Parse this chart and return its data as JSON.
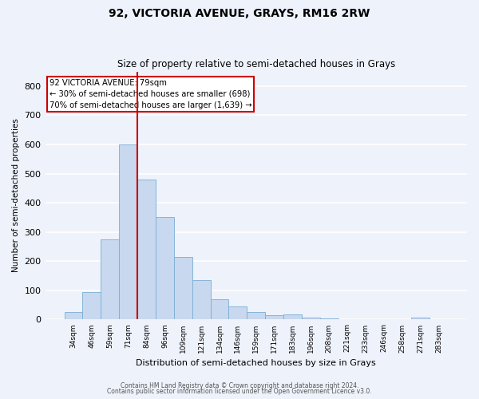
{
  "title_line1": "92, VICTORIA AVENUE, GRAYS, RM16 2RW",
  "title_line2": "Size of property relative to semi-detached houses in Grays",
  "xlabel": "Distribution of semi-detached houses by size in Grays",
  "ylabel": "Number of semi-detached properties",
  "categories": [
    "34sqm",
    "46sqm",
    "59sqm",
    "71sqm",
    "84sqm",
    "96sqm",
    "109sqm",
    "121sqm",
    "134sqm",
    "146sqm",
    "159sqm",
    "171sqm",
    "183sqm",
    "196sqm",
    "208sqm",
    "221sqm",
    "233sqm",
    "246sqm",
    "258sqm",
    "271sqm",
    "283sqm"
  ],
  "values": [
    25,
    95,
    275,
    600,
    480,
    350,
    215,
    135,
    70,
    45,
    25,
    15,
    17,
    8,
    5,
    0,
    0,
    0,
    0,
    7,
    0
  ],
  "bar_color": "#c8d8ef",
  "bar_edge_color": "#7aadd4",
  "background_color": "#eef2fb",
  "grid_color": "#ffffff",
  "vline_x_index": 3.5,
  "vline_color": "#cc0000",
  "annotation_text_line1": "92 VICTORIA AVENUE: 79sqm",
  "annotation_text_line2": "← 30% of semi-detached houses are smaller (698)",
  "annotation_text_line3": "70% of semi-detached houses are larger (1,639) →",
  "annotation_box_edgecolor": "#cc0000",
  "ylim": [
    0,
    850
  ],
  "yticks": [
    0,
    100,
    200,
    300,
    400,
    500,
    600,
    700,
    800
  ],
  "footnote1": "Contains HM Land Registry data © Crown copyright and database right 2024.",
  "footnote2": "Contains public sector information licensed under the Open Government Licence v3.0."
}
